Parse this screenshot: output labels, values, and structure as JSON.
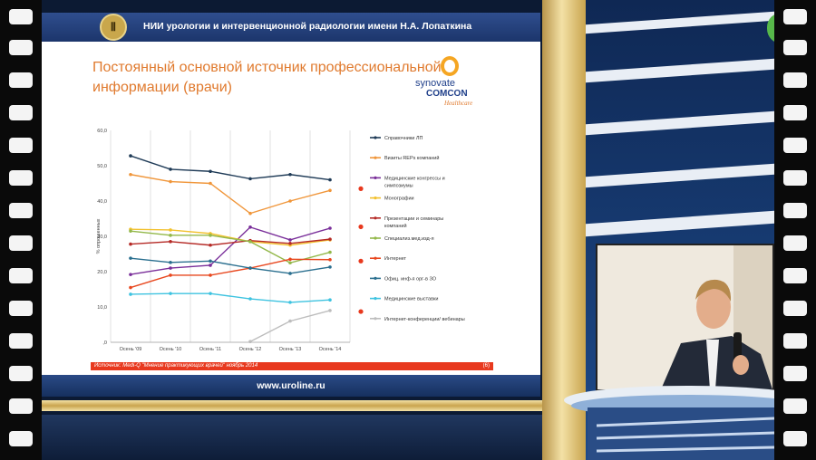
{
  "slide": {
    "header_text": "НИИ урологии и интервенционной радиологии имени Н.А. Лопаткина",
    "title": "Постоянный основной источник профессиональной информации (врачи)",
    "brand_top": "synovate",
    "brand_mid": "COMCON",
    "brand_sub": "Healthcare",
    "source": "Источник: Medi-Q \"Мнение практикующих врачей\" ноябрь 2014",
    "page_number": "(6)",
    "footer_url": "www.uroline.ru"
  },
  "colors": {
    "title": "#e07a2e",
    "header_bg": "#1c356b",
    "source_bar": "#e8391e",
    "significance_dot": "#e8391e"
  },
  "chart_data": {
    "type": "line",
    "ylabel": "% опрошенных",
    "ylim": [
      0,
      60
    ],
    "yticks": [
      "60,0",
      "50,0",
      "40,0",
      "30,0",
      "20,0",
      "10,0",
      ",0"
    ],
    "categories": [
      "Осень '09",
      "Осень '10",
      "Осень '11",
      "Осень '12",
      "Осень '13",
      "Осень '14"
    ],
    "grid": "vertical",
    "legend": "right",
    "series": [
      {
        "name": "Справочники ЛП",
        "color": "#1f3b57",
        "values": [
          52.8,
          49.0,
          48.4,
          46.3,
          47.5,
          46.0
        ]
      },
      {
        "name": "Визиты REPs компаний",
        "color": "#f0963a",
        "values": [
          47.5,
          45.5,
          45.0,
          36.5,
          40.0,
          43.0
        ]
      },
      {
        "name": "Медицинские конгрессы и симпозиумы",
        "color": "#7a2f9a",
        "values": [
          19.2,
          21.0,
          21.8,
          32.6,
          29.0,
          32.3
        ]
      },
      {
        "name": "Монографии",
        "color": "#f2c12e",
        "values": [
          32.0,
          31.8,
          30.8,
          28.5,
          27.5,
          29.0
        ]
      },
      {
        "name": "Презентации и семинары компаний",
        "color": "#b52a26",
        "values": [
          27.8,
          28.5,
          27.5,
          28.8,
          28.0,
          29.2
        ]
      },
      {
        "name": "Специализ.мед.изд-я",
        "color": "#93b84a",
        "values": [
          31.5,
          30.3,
          30.3,
          28.5,
          22.5,
          25.5
        ]
      },
      {
        "name": "Интернет",
        "color": "#e8471e",
        "values": [
          15.5,
          19.0,
          19.0,
          21.0,
          23.5,
          23.4
        ]
      },
      {
        "name": "Офиц. инф-я орг-в ЗО",
        "color": "#2a6f8f",
        "values": [
          23.8,
          22.6,
          23.0,
          21.0,
          19.5,
          21.3
        ]
      },
      {
        "name": "Медицинские выставки",
        "color": "#3ec3e0",
        "values": [
          13.6,
          13.8,
          13.8,
          12.3,
          11.3,
          12.0
        ]
      },
      {
        "name": "Интернет-конференции/ вебинары",
        "color": "#bdbdbd",
        "values": [
          null,
          null,
          null,
          0.2,
          6.0,
          9.0
        ]
      }
    ],
    "markers": [
      {
        "series": "Визиты REPs компаний",
        "value": 43.5
      },
      {
        "series": "Медицинские конгрессы и симпозиумы",
        "value": 32.7
      },
      {
        "series": "Интернет",
        "value": 23.0
      },
      {
        "series": "Интернет-конференции/ вебинары",
        "value": 8.7
      }
    ]
  }
}
